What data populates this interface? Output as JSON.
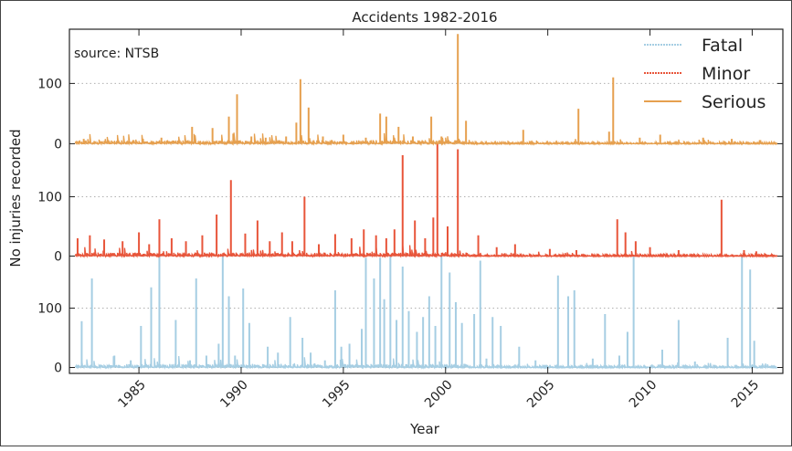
{
  "chart_data": {
    "type": "line",
    "title": "Accidents 1982-2016",
    "xlabel": "Year",
    "ylabel": "No injuries recorded",
    "annotation": "source: NTSB",
    "x_ticks": [
      "1985",
      "1990",
      "1995",
      "2000",
      "2005",
      "2010",
      "2015"
    ],
    "y_ticks": [
      "0",
      "100"
    ],
    "xlim": [
      1981.6,
      2016.5
    ],
    "grid": true,
    "legend_position": "top-right",
    "series": [
      {
        "name": "Fatal",
        "color": "#a6cee3",
        "band": "bottom",
        "ylim": [
          -10,
          190
        ],
        "spikes": [
          [
            1982.2,
            78
          ],
          [
            1982.7,
            150
          ],
          [
            1983.8,
            20
          ],
          [
            1984.6,
            12
          ],
          [
            1985.1,
            70
          ],
          [
            1985.6,
            135
          ],
          [
            1986.0,
            200
          ],
          [
            1986.8,
            80
          ],
          [
            1987.5,
            12
          ],
          [
            1987.8,
            150
          ],
          [
            1988.3,
            20
          ],
          [
            1988.9,
            40
          ],
          [
            1989.1,
            190
          ],
          [
            1989.4,
            120
          ],
          [
            1989.7,
            20
          ],
          [
            1990.1,
            133
          ],
          [
            1990.4,
            75
          ],
          [
            1991.3,
            35
          ],
          [
            1991.8,
            25
          ],
          [
            1992.4,
            85
          ],
          [
            1993.0,
            50
          ],
          [
            1993.4,
            25
          ],
          [
            1994.1,
            12
          ],
          [
            1994.6,
            130
          ],
          [
            1994.9,
            35
          ],
          [
            1995.3,
            40
          ],
          [
            1995.9,
            65
          ],
          [
            1996.1,
            185
          ],
          [
            1996.5,
            150
          ],
          [
            1996.8,
            185
          ],
          [
            1997.0,
            115
          ],
          [
            1997.3,
            190
          ],
          [
            1997.6,
            80
          ],
          [
            1997.9,
            170
          ],
          [
            1998.2,
            95
          ],
          [
            1998.6,
            60
          ],
          [
            1998.9,
            85
          ],
          [
            1999.2,
            120
          ],
          [
            1999.5,
            70
          ],
          [
            1999.8,
            200
          ],
          [
            2000.2,
            160
          ],
          [
            2000.5,
            110
          ],
          [
            2000.8,
            75
          ],
          [
            2001.4,
            90
          ],
          [
            2001.7,
            180
          ],
          [
            2002.0,
            15
          ],
          [
            2002.3,
            85
          ],
          [
            2002.7,
            70
          ],
          [
            2003.6,
            35
          ],
          [
            2004.4,
            12
          ],
          [
            2005.5,
            155
          ],
          [
            2006.0,
            120
          ],
          [
            2006.3,
            130
          ],
          [
            2007.2,
            15
          ],
          [
            2007.8,
            90
          ],
          [
            2008.5,
            20
          ],
          [
            2008.9,
            60
          ],
          [
            2009.2,
            200
          ],
          [
            2010.6,
            30
          ],
          [
            2011.4,
            80
          ],
          [
            2012.2,
            10
          ],
          [
            2013.8,
            50
          ],
          [
            2014.5,
            200
          ],
          [
            2014.9,
            165
          ],
          [
            2015.1,
            45
          ]
        ]
      },
      {
        "name": "Minor",
        "color": "#e8553a",
        "band": "middle",
        "ylim": [
          -10,
          190
        ],
        "spikes": [
          [
            1982.0,
            30
          ],
          [
            1982.6,
            35
          ],
          [
            1983.3,
            28
          ],
          [
            1984.2,
            25
          ],
          [
            1985.0,
            40
          ],
          [
            1985.5,
            20
          ],
          [
            1986.0,
            62
          ],
          [
            1986.6,
            30
          ],
          [
            1987.3,
            25
          ],
          [
            1988.1,
            35
          ],
          [
            1988.8,
            70
          ],
          [
            1989.5,
            128
          ],
          [
            1990.2,
            38
          ],
          [
            1990.8,
            60
          ],
          [
            1991.4,
            25
          ],
          [
            1992.0,
            40
          ],
          [
            1992.5,
            25
          ],
          [
            1993.1,
            100
          ],
          [
            1993.8,
            20
          ],
          [
            1994.6,
            37
          ],
          [
            1995.4,
            30
          ],
          [
            1996.0,
            45
          ],
          [
            1996.6,
            35
          ],
          [
            1997.1,
            30
          ],
          [
            1997.5,
            45
          ],
          [
            1997.9,
            170
          ],
          [
            1998.5,
            60
          ],
          [
            1999.0,
            30
          ],
          [
            1999.4,
            65
          ],
          [
            1999.6,
            195
          ],
          [
            2000.1,
            50
          ],
          [
            2000.6,
            180
          ],
          [
            2001.6,
            35
          ],
          [
            2002.5,
            15
          ],
          [
            2003.4,
            20
          ],
          [
            2005.1,
            12
          ],
          [
            2006.4,
            10
          ],
          [
            2008.4,
            62
          ],
          [
            2008.8,
            40
          ],
          [
            2009.3,
            25
          ],
          [
            2010.0,
            15
          ],
          [
            2011.4,
            10
          ],
          [
            2013.5,
            95
          ],
          [
            2014.6,
            10
          ],
          [
            2015.2,
            8
          ]
        ]
      },
      {
        "name": "Serious",
        "color": "#e6a04f",
        "band": "top",
        "ylim": [
          -10,
          190
        ],
        "spikes": [
          [
            1982.3,
            8
          ],
          [
            1983.5,
            6
          ],
          [
            1985.2,
            8
          ],
          [
            1986.1,
            10
          ],
          [
            1987.6,
            28
          ],
          [
            1988.6,
            26
          ],
          [
            1989.4,
            45
          ],
          [
            1989.8,
            82
          ],
          [
            1990.5,
            12
          ],
          [
            1991.2,
            10
          ],
          [
            1992.2,
            12
          ],
          [
            1992.7,
            35
          ],
          [
            1992.9,
            107
          ],
          [
            1993.3,
            60
          ],
          [
            1994.0,
            12
          ],
          [
            1995.0,
            15
          ],
          [
            1996.1,
            10
          ],
          [
            1996.8,
            50
          ],
          [
            1997.1,
            45
          ],
          [
            1997.7,
            28
          ],
          [
            1998.4,
            12
          ],
          [
            1999.3,
            45
          ],
          [
            1999.8,
            12
          ],
          [
            2000.6,
            182
          ],
          [
            2001.0,
            38
          ],
          [
            2003.8,
            23
          ],
          [
            2006.5,
            58
          ],
          [
            2008.0,
            20
          ],
          [
            2008.2,
            110
          ],
          [
            2009.5,
            10
          ],
          [
            2010.5,
            15
          ],
          [
            2012.6,
            10
          ],
          [
            2014.0,
            8
          ],
          [
            2015.4,
            6
          ]
        ]
      }
    ]
  }
}
